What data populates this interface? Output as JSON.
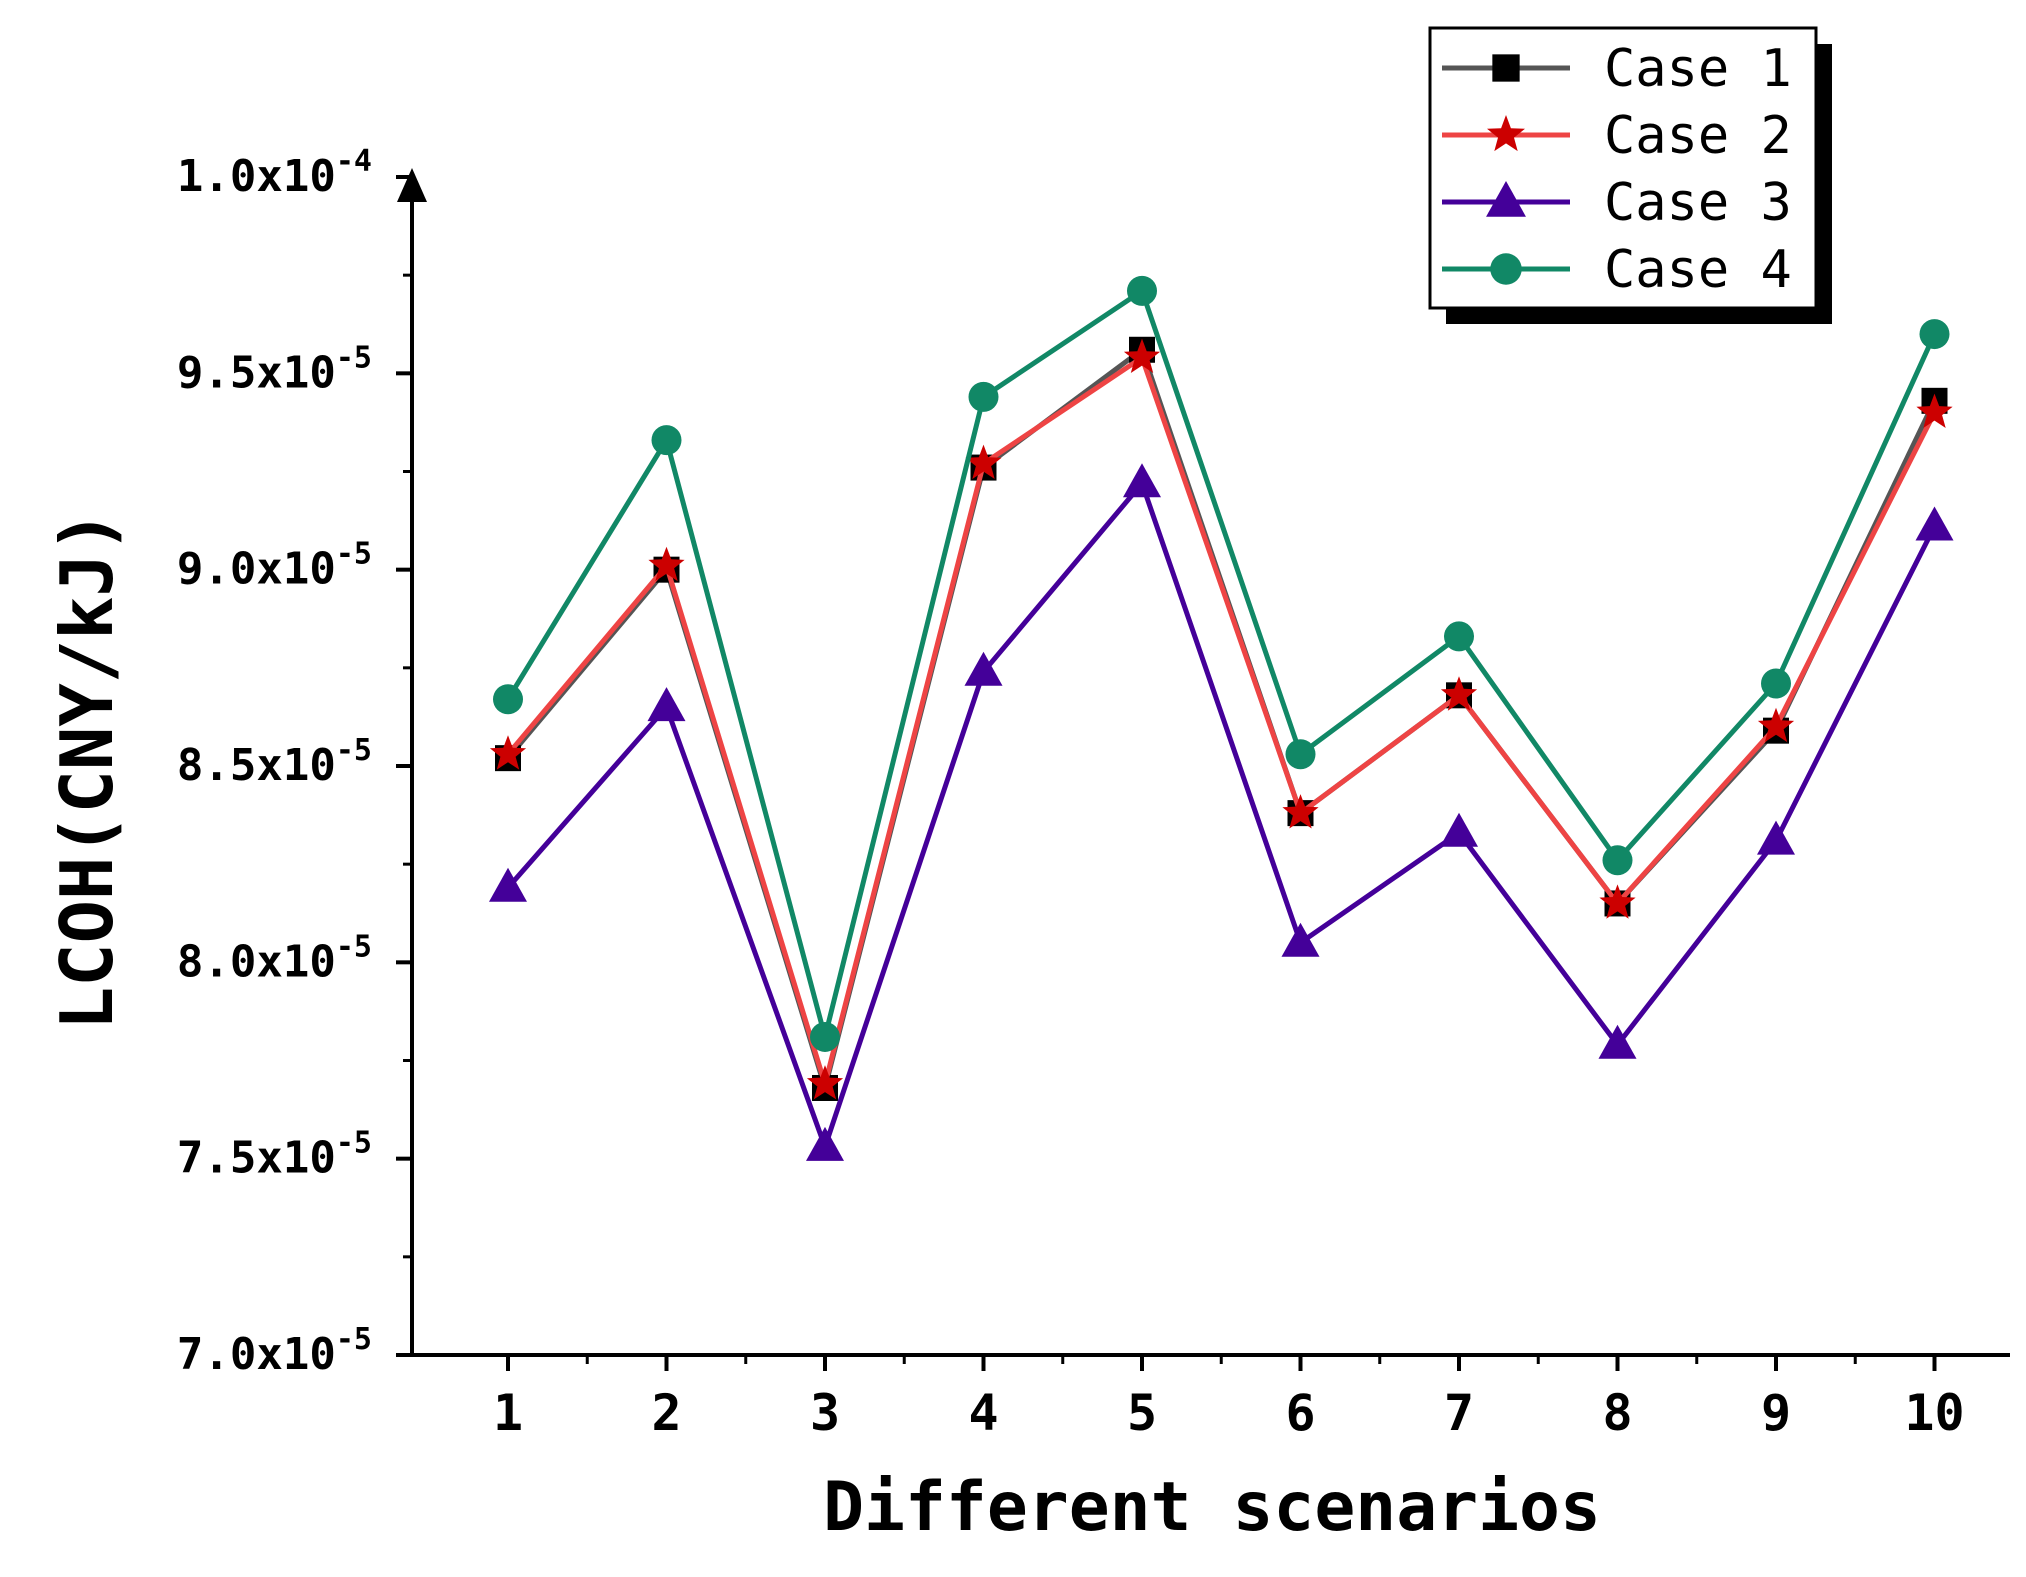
{
  "chart_data": {
    "type": "line",
    "title": "",
    "xlabel": "Different scenarios",
    "ylabel": "LCOH(CNY/kJ)",
    "categories": [
      "1",
      "2",
      "3",
      "4",
      "5",
      "6",
      "7",
      "8",
      "9",
      "10"
    ],
    "x": [
      1,
      2,
      3,
      4,
      5,
      6,
      7,
      8,
      9,
      10
    ],
    "xlim": [
      0.4,
      10.5
    ],
    "ylim": [
      7e-05,
      0.0001
    ],
    "yticks": [
      {
        "value": 7e-05,
        "mantissa": "7.0x10",
        "exp": "-5"
      },
      {
        "value": 7.5e-05,
        "mantissa": "7.5x10",
        "exp": "-5"
      },
      {
        "value": 8e-05,
        "mantissa": "8.0x10",
        "exp": "-5"
      },
      {
        "value": 8.5e-05,
        "mantissa": "8.5x10",
        "exp": "-5"
      },
      {
        "value": 9e-05,
        "mantissa": "9.0x10",
        "exp": "-5"
      },
      {
        "value": 9.5e-05,
        "mantissa": "9.5x10",
        "exp": "-5"
      },
      {
        "value": 0.0001,
        "mantissa": "1.0x10",
        "exp": "-4"
      }
    ],
    "grid": false,
    "legend_position": "top-right",
    "series": [
      {
        "name": "Case 1",
        "color": "#555555",
        "marker_color": "#000000",
        "marker": "square",
        "values": [
          8.52e-05,
          9e-05,
          7.68e-05,
          9.26e-05,
          9.56e-05,
          8.38e-05,
          8.68e-05,
          8.15e-05,
          8.59e-05,
          9.43e-05
        ]
      },
      {
        "name": "Case 2",
        "color": "#ee4444",
        "marker_color": "#cc0000",
        "marker": "star",
        "values": [
          8.53e-05,
          9.01e-05,
          7.69e-05,
          9.27e-05,
          9.54e-05,
          8.38e-05,
          8.68e-05,
          8.15e-05,
          8.6e-05,
          9.4e-05
        ]
      },
      {
        "name": "Case 3",
        "color": "#440099",
        "marker_color": "#440099",
        "marker": "triangle",
        "values": [
          8.19e-05,
          8.65e-05,
          7.53e-05,
          8.74e-05,
          9.22e-05,
          8.05e-05,
          8.33e-05,
          7.79e-05,
          8.31e-05,
          9.11e-05
        ]
      },
      {
        "name": "Case 4",
        "color": "#118866",
        "marker_color": "#118866",
        "marker": "circle",
        "values": [
          8.67e-05,
          9.33e-05,
          7.81e-05,
          9.44e-05,
          9.71e-05,
          8.53e-05,
          8.83e-05,
          8.26e-05,
          8.71e-05,
          9.6e-05
        ]
      }
    ]
  }
}
